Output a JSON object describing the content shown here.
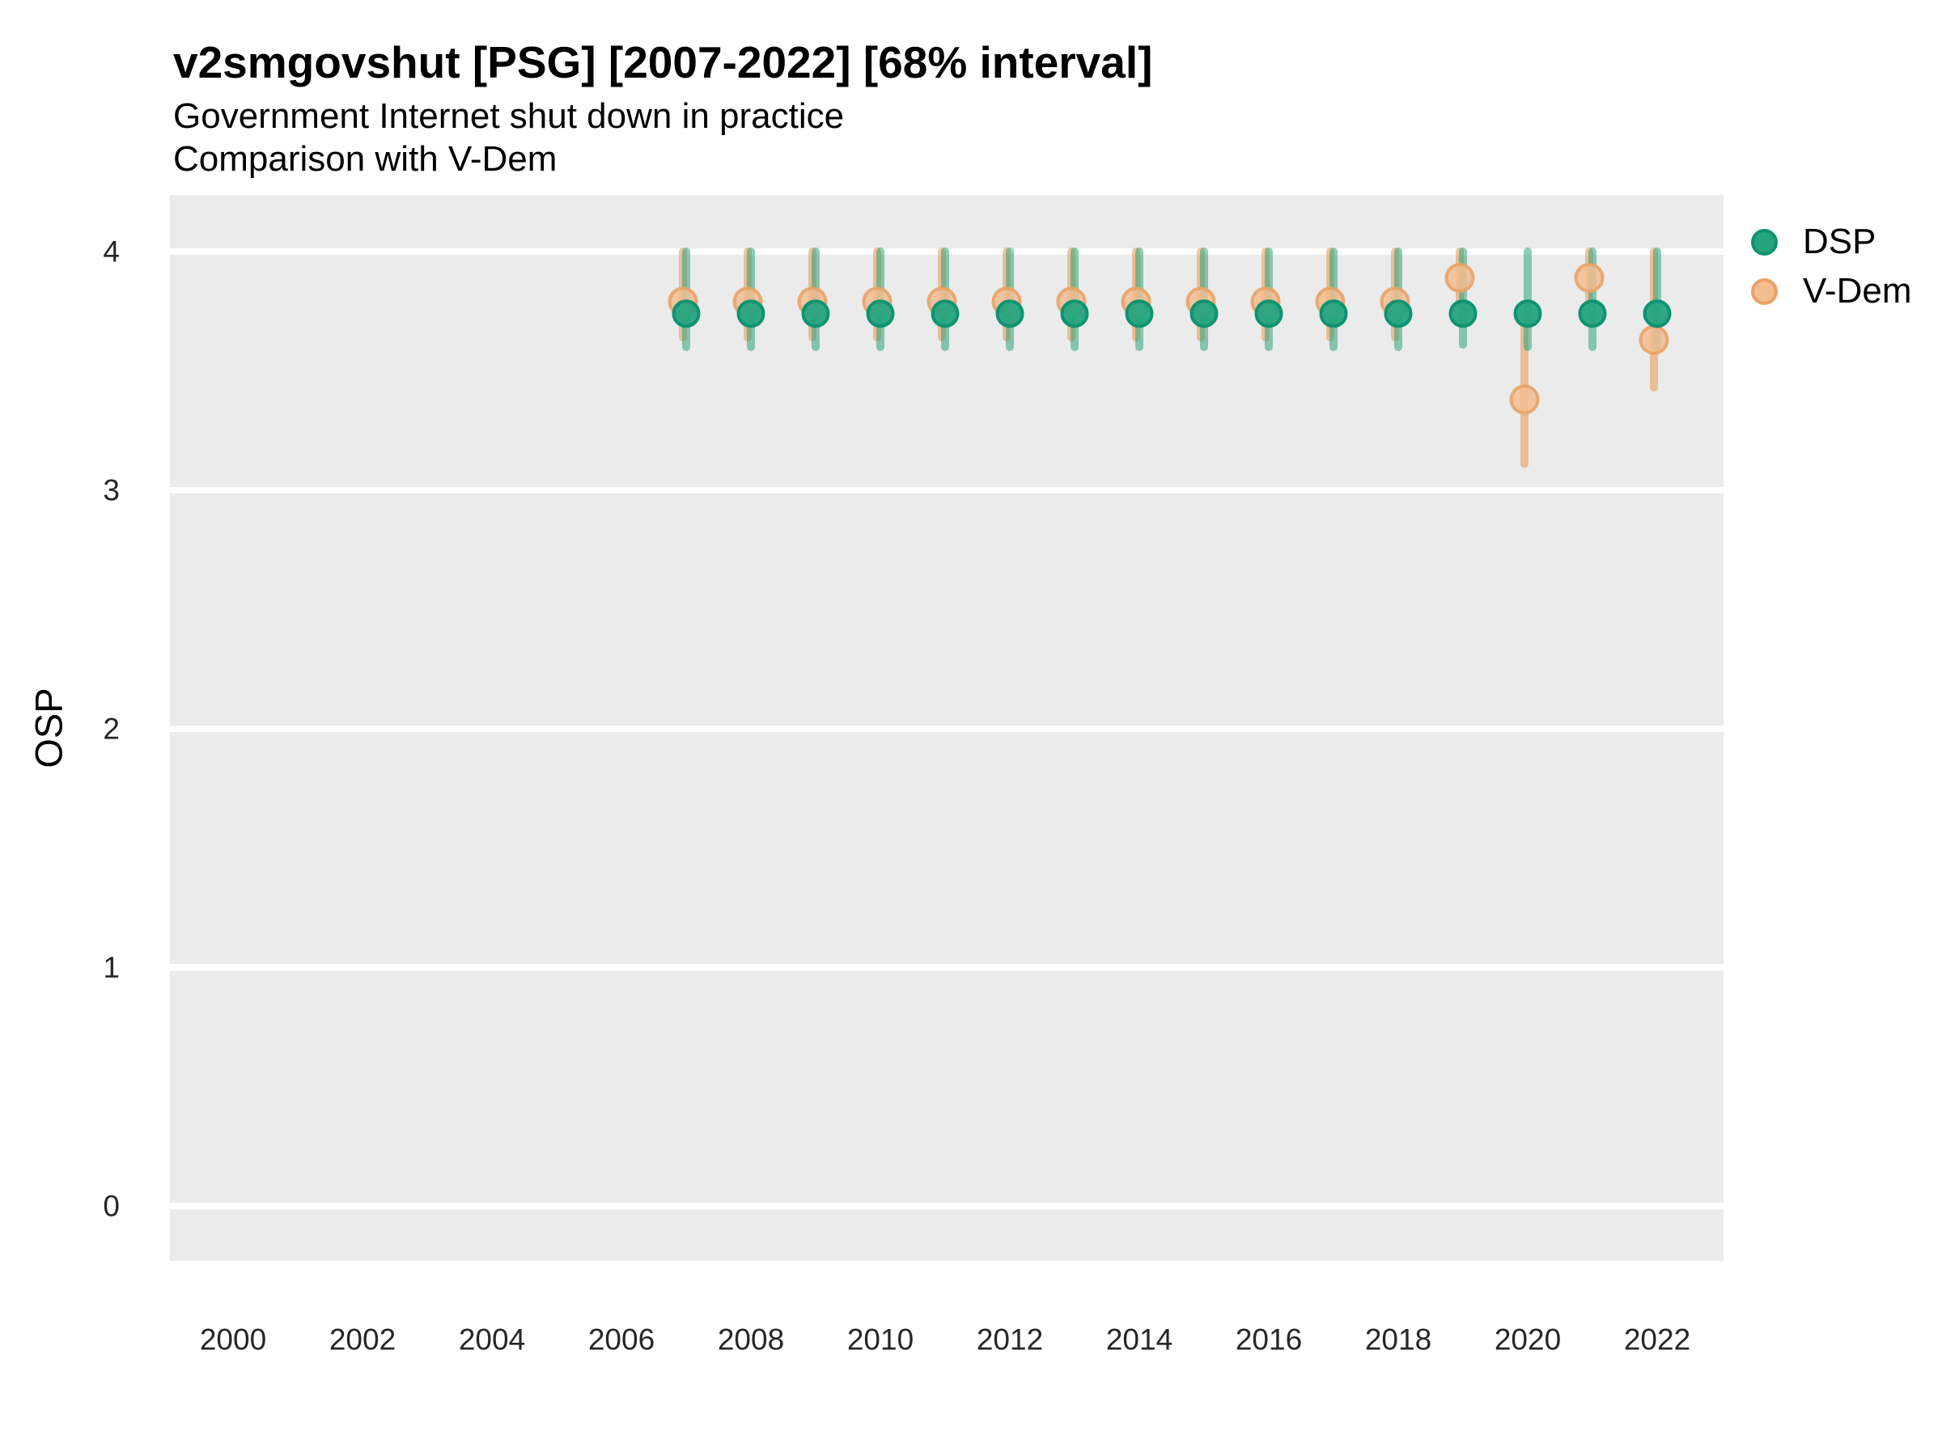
{
  "chart_data": {
    "type": "scatter",
    "title": "v2smgovshut [PSG] [2007-2022] [68% interval]",
    "subtitle": "Government Internet shut down in practice",
    "subtitle2": "Comparison with V-Dem",
    "ylabel": "OSP",
    "interval": "68%",
    "legend_position": "right",
    "grid": "horizontal-major-only",
    "xlim": [
      1999,
      2023.1
    ],
    "ylim": [
      -0.23,
      4.24
    ],
    "x_ticks": [
      2000,
      2002,
      2004,
      2006,
      2008,
      2010,
      2012,
      2014,
      2016,
      2018,
      2020,
      2022
    ],
    "y_ticks": [
      4,
      3,
      2,
      1,
      0
    ],
    "colors": {
      "panel_bg": "#ebebeb",
      "grid": "#ffffff",
      "tick_text": "#262626",
      "dsp_fill": "#25a37f",
      "dsp_stroke": "#0d9371",
      "dsp_bar": "#1a9e76",
      "vdem_fill": "#f3bd92",
      "vdem_stroke": "#e9a366",
      "vdem_bar": "#e59141"
    },
    "series": [
      {
        "name": "DSP",
        "points": [
          {
            "year": 2007,
            "est": 3.74,
            "lo": 3.6,
            "hi": 4.0
          },
          {
            "year": 2008,
            "est": 3.74,
            "lo": 3.6,
            "hi": 4.0
          },
          {
            "year": 2009,
            "est": 3.74,
            "lo": 3.6,
            "hi": 4.0
          },
          {
            "year": 2010,
            "est": 3.74,
            "lo": 3.6,
            "hi": 4.0
          },
          {
            "year": 2011,
            "est": 3.74,
            "lo": 3.6,
            "hi": 4.0
          },
          {
            "year": 2012,
            "est": 3.74,
            "lo": 3.6,
            "hi": 4.0
          },
          {
            "year": 2013,
            "est": 3.74,
            "lo": 3.6,
            "hi": 4.0
          },
          {
            "year": 2014,
            "est": 3.74,
            "lo": 3.6,
            "hi": 4.0
          },
          {
            "year": 2015,
            "est": 3.74,
            "lo": 3.6,
            "hi": 4.0
          },
          {
            "year": 2016,
            "est": 3.74,
            "lo": 3.6,
            "hi": 4.0
          },
          {
            "year": 2017,
            "est": 3.74,
            "lo": 3.6,
            "hi": 4.0
          },
          {
            "year": 2018,
            "est": 3.74,
            "lo": 3.6,
            "hi": 4.0
          },
          {
            "year": 2019,
            "est": 3.74,
            "lo": 3.61,
            "hi": 4.0
          },
          {
            "year": 2020,
            "est": 3.74,
            "lo": 3.6,
            "hi": 4.0
          },
          {
            "year": 2021,
            "est": 3.74,
            "lo": 3.6,
            "hi": 4.0
          },
          {
            "year": 2022,
            "est": 3.74,
            "lo": 3.6,
            "hi": 4.0
          }
        ]
      },
      {
        "name": "V-Dem",
        "points": [
          {
            "year": 2007,
            "est": 3.79,
            "lo": 3.64,
            "hi": 4.0
          },
          {
            "year": 2008,
            "est": 3.79,
            "lo": 3.64,
            "hi": 4.0
          },
          {
            "year": 2009,
            "est": 3.79,
            "lo": 3.64,
            "hi": 4.0
          },
          {
            "year": 2010,
            "est": 3.79,
            "lo": 3.64,
            "hi": 4.0
          },
          {
            "year": 2011,
            "est": 3.79,
            "lo": 3.64,
            "hi": 4.0
          },
          {
            "year": 2012,
            "est": 3.79,
            "lo": 3.64,
            "hi": 4.0
          },
          {
            "year": 2013,
            "est": 3.79,
            "lo": 3.64,
            "hi": 4.0
          },
          {
            "year": 2014,
            "est": 3.79,
            "lo": 3.64,
            "hi": 4.0
          },
          {
            "year": 2015,
            "est": 3.79,
            "lo": 3.64,
            "hi": 4.0
          },
          {
            "year": 2016,
            "est": 3.79,
            "lo": 3.64,
            "hi": 4.0
          },
          {
            "year": 2017,
            "est": 3.79,
            "lo": 3.64,
            "hi": 4.0
          },
          {
            "year": 2018,
            "est": 3.79,
            "lo": 3.64,
            "hi": 4.0
          },
          {
            "year": 2019,
            "est": 3.89,
            "lo": 3.79,
            "hi": 4.0
          },
          {
            "year": 2020,
            "est": 3.38,
            "lo": 3.11,
            "hi": 3.69
          },
          {
            "year": 2021,
            "est": 3.89,
            "lo": 3.8,
            "hi": 4.0
          },
          {
            "year": 2022,
            "est": 3.63,
            "lo": 3.43,
            "hi": 4.0
          }
        ]
      }
    ]
  }
}
